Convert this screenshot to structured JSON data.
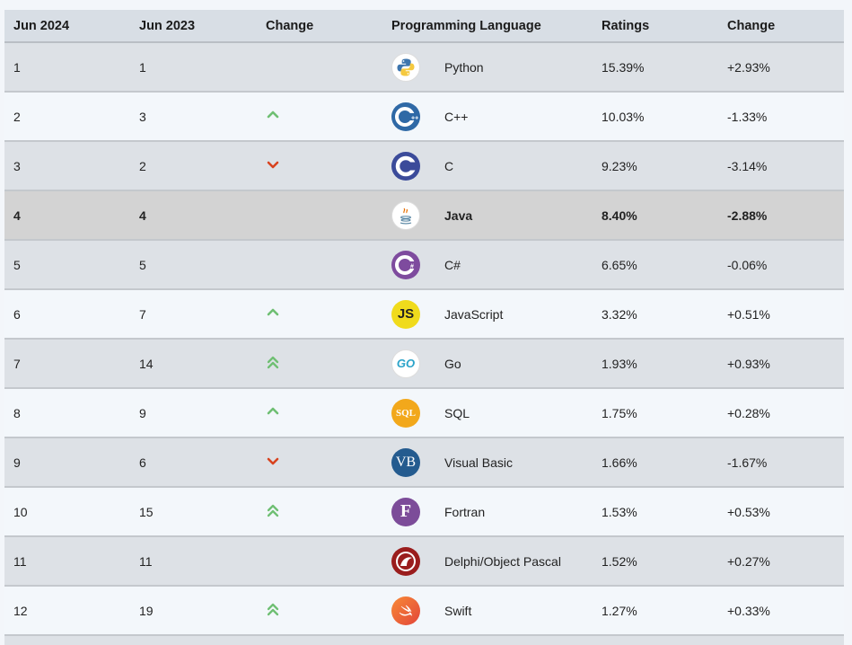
{
  "headers": [
    "Jun 2024",
    "Jun 2023",
    "Change",
    "Programming Language",
    "Ratings",
    "Change"
  ],
  "rows": [
    {
      "jun2024": "1",
      "jun2023": "1",
      "trend": "none",
      "language": "Python",
      "icon": "python-icon",
      "rating": "15.39%",
      "change": "+2.93%"
    },
    {
      "jun2024": "2",
      "jun2023": "3",
      "trend": "up",
      "language": "C++",
      "icon": "cplusplus-icon",
      "rating": "10.03%",
      "change": "-1.33%"
    },
    {
      "jun2024": "3",
      "jun2023": "2",
      "trend": "down",
      "language": "C",
      "icon": "c-icon",
      "rating": "9.23%",
      "change": "-3.14%"
    },
    {
      "jun2024": "4",
      "jun2023": "4",
      "trend": "none",
      "language": "Java",
      "icon": "java-icon",
      "rating": "8.40%",
      "change": "-2.88%",
      "highlight": true
    },
    {
      "jun2024": "5",
      "jun2023": "5",
      "trend": "none",
      "language": "C#",
      "icon": "csharp-icon",
      "rating": "6.65%",
      "change": "-0.06%"
    },
    {
      "jun2024": "6",
      "jun2023": "7",
      "trend": "up",
      "language": "JavaScript",
      "icon": "javascript-icon",
      "rating": "3.32%",
      "change": "+0.51%"
    },
    {
      "jun2024": "7",
      "jun2023": "14",
      "trend": "double-up",
      "language": "Go",
      "icon": "go-icon",
      "rating": "1.93%",
      "change": "+0.93%"
    },
    {
      "jun2024": "8",
      "jun2023": "9",
      "trend": "up",
      "language": "SQL",
      "icon": "sql-icon",
      "rating": "1.75%",
      "change": "+0.28%"
    },
    {
      "jun2024": "9",
      "jun2023": "6",
      "trend": "down",
      "language": "Visual Basic",
      "icon": "visual-basic-icon",
      "rating": "1.66%",
      "change": "-1.67%"
    },
    {
      "jun2024": "10",
      "jun2023": "15",
      "trend": "double-up",
      "language": "Fortran",
      "icon": "fortran-icon",
      "rating": "1.53%",
      "change": "+0.53%"
    },
    {
      "jun2024": "11",
      "jun2023": "11",
      "trend": "none",
      "language": "Delphi/Object Pascal",
      "icon": "delphi-icon",
      "rating": "1.52%",
      "change": "+0.27%"
    },
    {
      "jun2024": "12",
      "jun2023": "19",
      "trend": "double-up",
      "language": "Swift",
      "icon": "swift-icon",
      "rating": "1.27%",
      "change": "+0.33%"
    }
  ],
  "logo_text": {
    "javascript": "JS",
    "go": "GO",
    "sql": "SQL",
    "visual_basic": "VB",
    "fortran": "F"
  },
  "colors": {
    "up": "#6fbf73",
    "down": "#d8431f"
  }
}
